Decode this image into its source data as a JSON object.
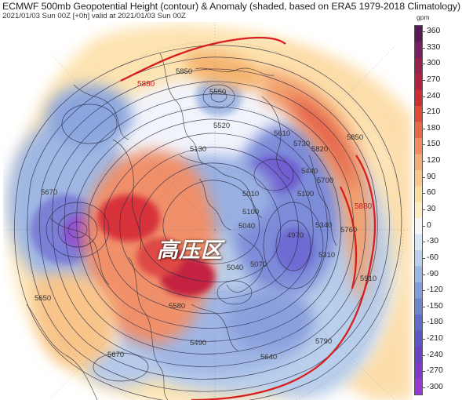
{
  "header": {
    "title": "ECMWF 500mb Geopotential Height (contour) & Anomaly (shaded, based on ERA5 1979-2018 Climatology)",
    "subtitle": "2021/01/03 Sun 00Z [+0h] valid at 2021/01/03 Sun 00Z"
  },
  "overlay_label": "高压区",
  "colorbar": {
    "unit": "gpm",
    "ticks": [
      "360",
      "330",
      "300",
      "270",
      "240",
      "210",
      "180",
      "150",
      "120",
      "90",
      "60",
      "30",
      "0",
      "-30",
      "-60",
      "-90",
      "-120",
      "-150",
      "-180",
      "-210",
      "-240",
      "-270",
      "-300"
    ]
  },
  "contour_labels": [
    {
      "text": "5880",
      "color": "#cc1c1c"
    },
    {
      "text": "5850",
      "color": "#333"
    },
    {
      "text": "5550",
      "color": "#333"
    },
    {
      "text": "5520",
      "color": "#333"
    },
    {
      "text": "5130",
      "color": "#333"
    },
    {
      "text": "5610",
      "color": "#333"
    },
    {
      "text": "5730",
      "color": "#333"
    },
    {
      "text": "5820",
      "color": "#333"
    },
    {
      "text": "5850",
      "color": "#333"
    },
    {
      "text": "5670",
      "color": "#333"
    },
    {
      "text": "5440",
      "color": "#333"
    },
    {
      "text": "5700",
      "color": "#333"
    },
    {
      "text": "5100",
      "color": "#333"
    },
    {
      "text": "5010",
      "color": "#333"
    },
    {
      "text": "4970",
      "color": "#333"
    },
    {
      "text": "5040",
      "color": "#333"
    },
    {
      "text": "5100",
      "color": "#333"
    },
    {
      "text": "5070",
      "color": "#333"
    },
    {
      "text": "5040",
      "color": "#333"
    },
    {
      "text": "5340",
      "color": "#333"
    },
    {
      "text": "5310",
      "color": "#333"
    },
    {
      "text": "5760",
      "color": "#333"
    },
    {
      "text": "5880",
      "color": "#cc1c1c"
    },
    {
      "text": "5910",
      "color": "#333"
    },
    {
      "text": "5580",
      "color": "#333"
    },
    {
      "text": "5490",
      "color": "#333"
    },
    {
      "text": "5640",
      "color": "#333"
    },
    {
      "text": "5790",
      "color": "#333"
    },
    {
      "text": "5670",
      "color": "#333"
    },
    {
      "text": "5650",
      "color": "#333"
    }
  ]
}
